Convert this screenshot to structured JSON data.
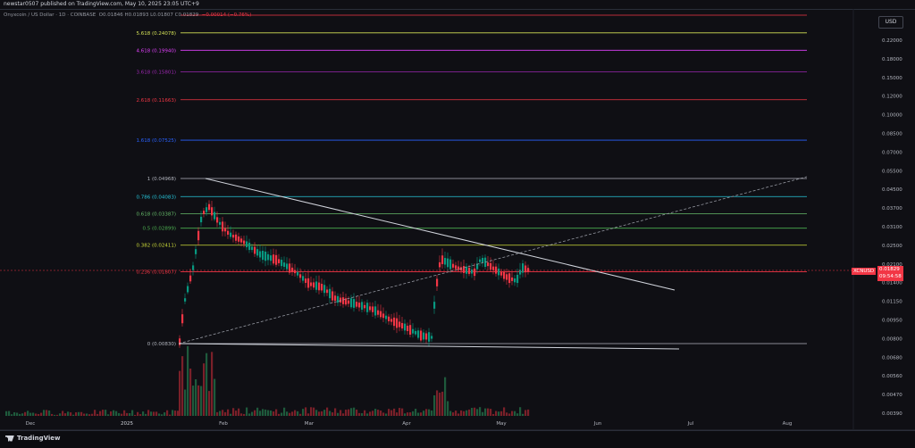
{
  "header": {
    "published": "newstar0507 published on TradingView.com, May 10, 2025 23:05 UTC+9"
  },
  "legend": {
    "symbol": "Onyxcoin / US Dollar · 1D · COINBASE",
    "ohlc_text": "O0.01846 H0.01893 L0.01807 C0.01829",
    "change": "−0.00014 (−0.76%)"
  },
  "currency_label": "USD",
  "price_tag": {
    "symbol": "XCNUSD",
    "price": "0.01829",
    "countdown": "09:54:58",
    "color": "#f23645"
  },
  "fib_levels": [
    {
      "label": "5.618 (0.24078)",
      "color": "#d4e157",
      "price": 0.24078
    },
    {
      "label": "4.618 (0.19940)",
      "color": "#e040fb",
      "price": 0.1994
    },
    {
      "label": "3.618 (0.15801)",
      "color": "#9c27b0",
      "price": 0.15801
    },
    {
      "label": "2.618 (0.11663)",
      "color": "#f23645",
      "price": 0.11663
    },
    {
      "label": "1.618 (0.07525)",
      "color": "#2962ff",
      "price": 0.07525
    },
    {
      "label": "1 (0.04968)",
      "color": "#b2b5be",
      "price": 0.04968
    },
    {
      "label": "0.786 (0.04083)",
      "color": "#26c6da",
      "price": 0.04083
    },
    {
      "label": "0.618 (0.03387)",
      "color": "#66bb6a",
      "price": 0.03387
    },
    {
      "label": "0.5 (0.02899)",
      "color": "#4caf50",
      "price": 0.02899
    },
    {
      "label": "0.382 (0.02411)",
      "color": "#cddc39",
      "price": 0.02411
    },
    {
      "label": "0.236 (0.01807)",
      "color": "#f23645",
      "price": 0.01807
    },
    {
      "label": "0 (0.00830)",
      "color": "#b2b5be",
      "price": 0.0083
    }
  ],
  "price_axis": [
    "0.22000",
    "0.18000",
    "0.15000",
    "0.12000",
    "0.10000",
    "0.08500",
    "0.07000",
    "0.05500",
    "0.04500",
    "0.03700",
    "0.03100",
    "0.02500",
    "0.02100",
    "0.01400",
    "0.01150",
    "0.00950",
    "0.00800",
    "0.00680",
    "0.00560",
    "0.00470",
    "0.00390"
  ],
  "time_axis": [
    "Dec",
    "2025",
    "Feb",
    "Mar",
    "Apr",
    "May",
    "Jun",
    "Jul",
    "Aug"
  ],
  "footer": {
    "brand": "TradingView"
  },
  "colors": {
    "up": "#089981",
    "down": "#f23645",
    "volume_up": "#1e5a3c",
    "volume_down": "#7a2029"
  }
}
